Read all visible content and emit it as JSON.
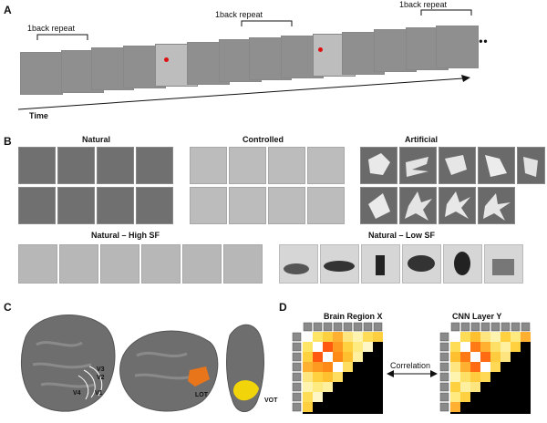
{
  "panel_a": {
    "letter": "A",
    "repeat_labels": [
      "1back repeat",
      "1back repeat",
      "1back repeat"
    ],
    "time_label": "Time",
    "ellipsis": "•••"
  },
  "panel_b": {
    "letter": "B",
    "natural_title": "Natural",
    "controlled_title": "Controlled",
    "artificial_title": "Artificial",
    "high_sf_title": "Natural – High SF",
    "low_sf_title": "Natural – Low SF"
  },
  "panel_c": {
    "letter": "C",
    "labels": [
      "V3",
      "V2",
      "V4",
      "V1",
      "LOT",
      "VOT"
    ],
    "colors": {
      "lot": "#e8751a",
      "vot": "#f2d40a",
      "brain": "#707070"
    }
  },
  "panel_d": {
    "letter": "D",
    "left_title": "Brain Region X",
    "right_title": "CNN Layer Y",
    "correlation_label": "Correlation"
  }
}
